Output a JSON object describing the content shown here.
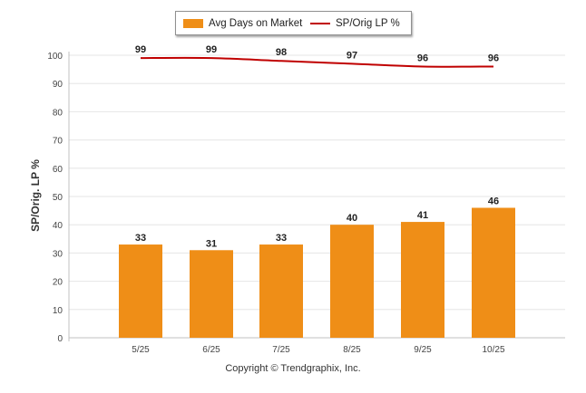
{
  "chart_data": {
    "type": "bar",
    "categories": [
      "5/25",
      "6/25",
      "7/25",
      "8/25",
      "9/25",
      "10/25"
    ],
    "series": [
      {
        "name": "Avg Days on Market",
        "type": "bar",
        "values": [
          33,
          31,
          33,
          40,
          41,
          46
        ],
        "color": "#ef8e17"
      },
      {
        "name": "SP/Orig LP %",
        "type": "line",
        "values": [
          99,
          99,
          98,
          97,
          96,
          96
        ],
        "color": "#c00000"
      }
    ],
    "ylabel": "SP/Orig. LP %",
    "xlabel": "",
    "ylim": [
      0,
      100
    ],
    "yticks": [
      0,
      10,
      20,
      30,
      40,
      50,
      60,
      70,
      80,
      90,
      100
    ],
    "grid": true,
    "legend_position": "top-center"
  },
  "footer": {
    "copyright": "Copyright © Trendgraphix, Inc."
  }
}
